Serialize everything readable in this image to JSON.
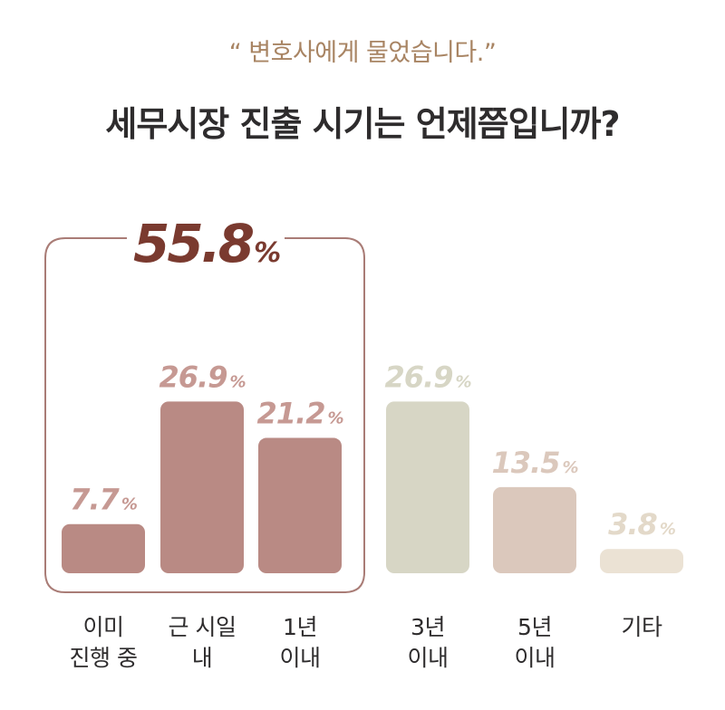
{
  "header": {
    "subtitle": "“ 변호사에게 물었습니다.”",
    "title": "세무시장 진출 시기는 언제쯤입니까?"
  },
  "colors": {
    "group_border": "#a97c76",
    "group_total": "#7a3a2f",
    "highlight_bar": "#b98a84",
    "highlight_label": "#c69993",
    "bar_3y": "#d7d6c5",
    "bar_5y": "#dbc8bc",
    "bar_other": "#ebe2d4",
    "label_3y": "#d7d6c5",
    "label_5y": "#dbc8bc",
    "label_other": "#e3d9c9"
  },
  "chart_data": {
    "type": "bar",
    "categories": [
      "이미\n진행 중",
      "근 시일\n내",
      "1년\n이내",
      "3년\n이내",
      "5년\n이내",
      "기타"
    ],
    "values": [
      7.7,
      26.9,
      21.2,
      26.9,
      13.5,
      3.8
    ],
    "value_labels": [
      "7.7",
      "26.9",
      "21.2",
      "26.9",
      "13.5",
      "3.8"
    ],
    "unit": "%",
    "highlight_group": {
      "indices": [
        0,
        1,
        2
      ],
      "total": "55.8",
      "unit": "%"
    },
    "ylim": [
      0,
      30
    ],
    "grid": false,
    "legend": "none"
  }
}
